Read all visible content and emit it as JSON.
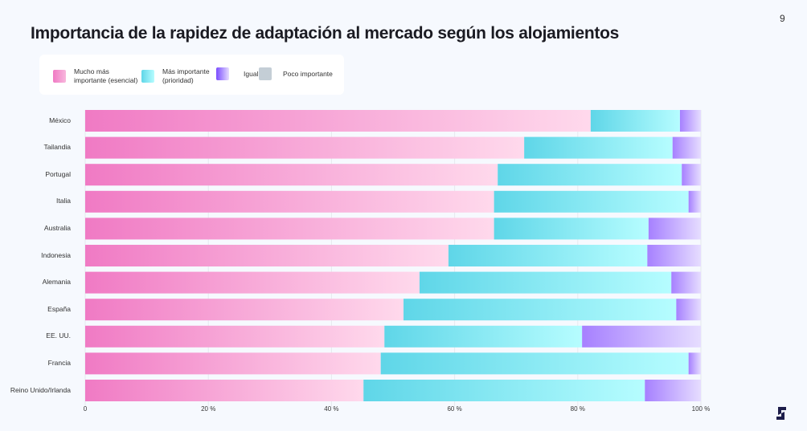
{
  "page": {
    "number": "9"
  },
  "chart_data": {
    "type": "bar",
    "orientation": "horizontal",
    "stacked": true,
    "title": "Importancia de la rapidez de adaptación al mercado según los alojamientos",
    "xlabel": "",
    "ylabel": "",
    "xlim": [
      0,
      100
    ],
    "x_ticks": [
      "0",
      "20 %",
      "40 %",
      "60 %",
      "80 %",
      "100 %"
    ],
    "x_tick_values": [
      0,
      20,
      40,
      60,
      80,
      100
    ],
    "legend_position": "top-left",
    "categories": [
      "México",
      "Tailandia",
      "Portugal",
      "Italia",
      "Australia",
      "Indonesia",
      "Alemania",
      "España",
      "EE. UU.",
      "Francia",
      "Reino Unido/Irlanda"
    ],
    "series": [
      {
        "name": "Mucho más importante (esencial)",
        "legend_lines": [
          "Mucho más",
          "importante (esencial)"
        ],
        "color": "#f07ac4",
        "color_end": "#ffd9ec",
        "values": [
          82.1,
          71.3,
          67.0,
          66.4,
          66.4,
          59.0,
          54.3,
          51.7,
          48.6,
          48.0,
          45.2
        ]
      },
      {
        "name": "Más importante (prioridad)",
        "legend_lines": [
          "Más importante",
          "(prioridad)"
        ],
        "color": "#5fd6e8",
        "color_end": "#b6fdff",
        "values": [
          14.5,
          24.1,
          29.9,
          31.6,
          25.1,
          32.3,
          40.9,
          44.3,
          32.1,
          50.0,
          45.7
        ]
      },
      {
        "name": "Igual",
        "legend_lines": [
          "Igual"
        ],
        "color": "#a680ff",
        "color_end": "#e6ddff",
        "values": [
          3.4,
          4.6,
          3.1,
          2.0,
          8.5,
          8.7,
          4.8,
          4.0,
          19.3,
          2.0,
          9.1
        ]
      },
      {
        "name": "Poco importante",
        "legend_lines": [
          "Poco importante"
        ],
        "color": "#c4ced6",
        "color_end": "#c4ced6",
        "values": [
          0,
          0,
          0,
          0,
          0,
          0,
          0,
          0,
          0,
          0,
          0
        ]
      }
    ]
  }
}
